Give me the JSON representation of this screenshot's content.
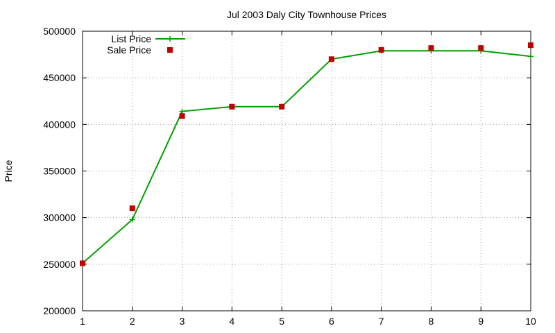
{
  "chart_data": {
    "type": "line",
    "title": "Jul 2003 Daly City Townhouse Prices",
    "xlabel": "",
    "ylabel": "Price",
    "x": [
      1,
      2,
      3,
      4,
      5,
      6,
      7,
      8,
      9,
      10
    ],
    "xlim": [
      1,
      10
    ],
    "ylim": [
      200000,
      500000
    ],
    "x_ticks": [
      "1",
      "2",
      "3",
      "4",
      "5",
      "6",
      "7",
      "8",
      "9",
      "10"
    ],
    "y_ticks": [
      "200000",
      "250000",
      "300000",
      "350000",
      "400000",
      "450000",
      "500000"
    ],
    "grid": true,
    "legend_position": "top-left",
    "series": [
      {
        "name": "List Price",
        "style": "line+cross",
        "color": "#00a000",
        "values": [
          251000,
          298000,
          414000,
          419000,
          419000,
          470000,
          479000,
          479000,
          479000,
          473000
        ]
      },
      {
        "name": "Sale Price",
        "style": "square",
        "color": "#c00000",
        "values": [
          251000,
          310000,
          409000,
          419000,
          419000,
          470000,
          480000,
          482000,
          482000,
          485000
        ]
      }
    ]
  }
}
